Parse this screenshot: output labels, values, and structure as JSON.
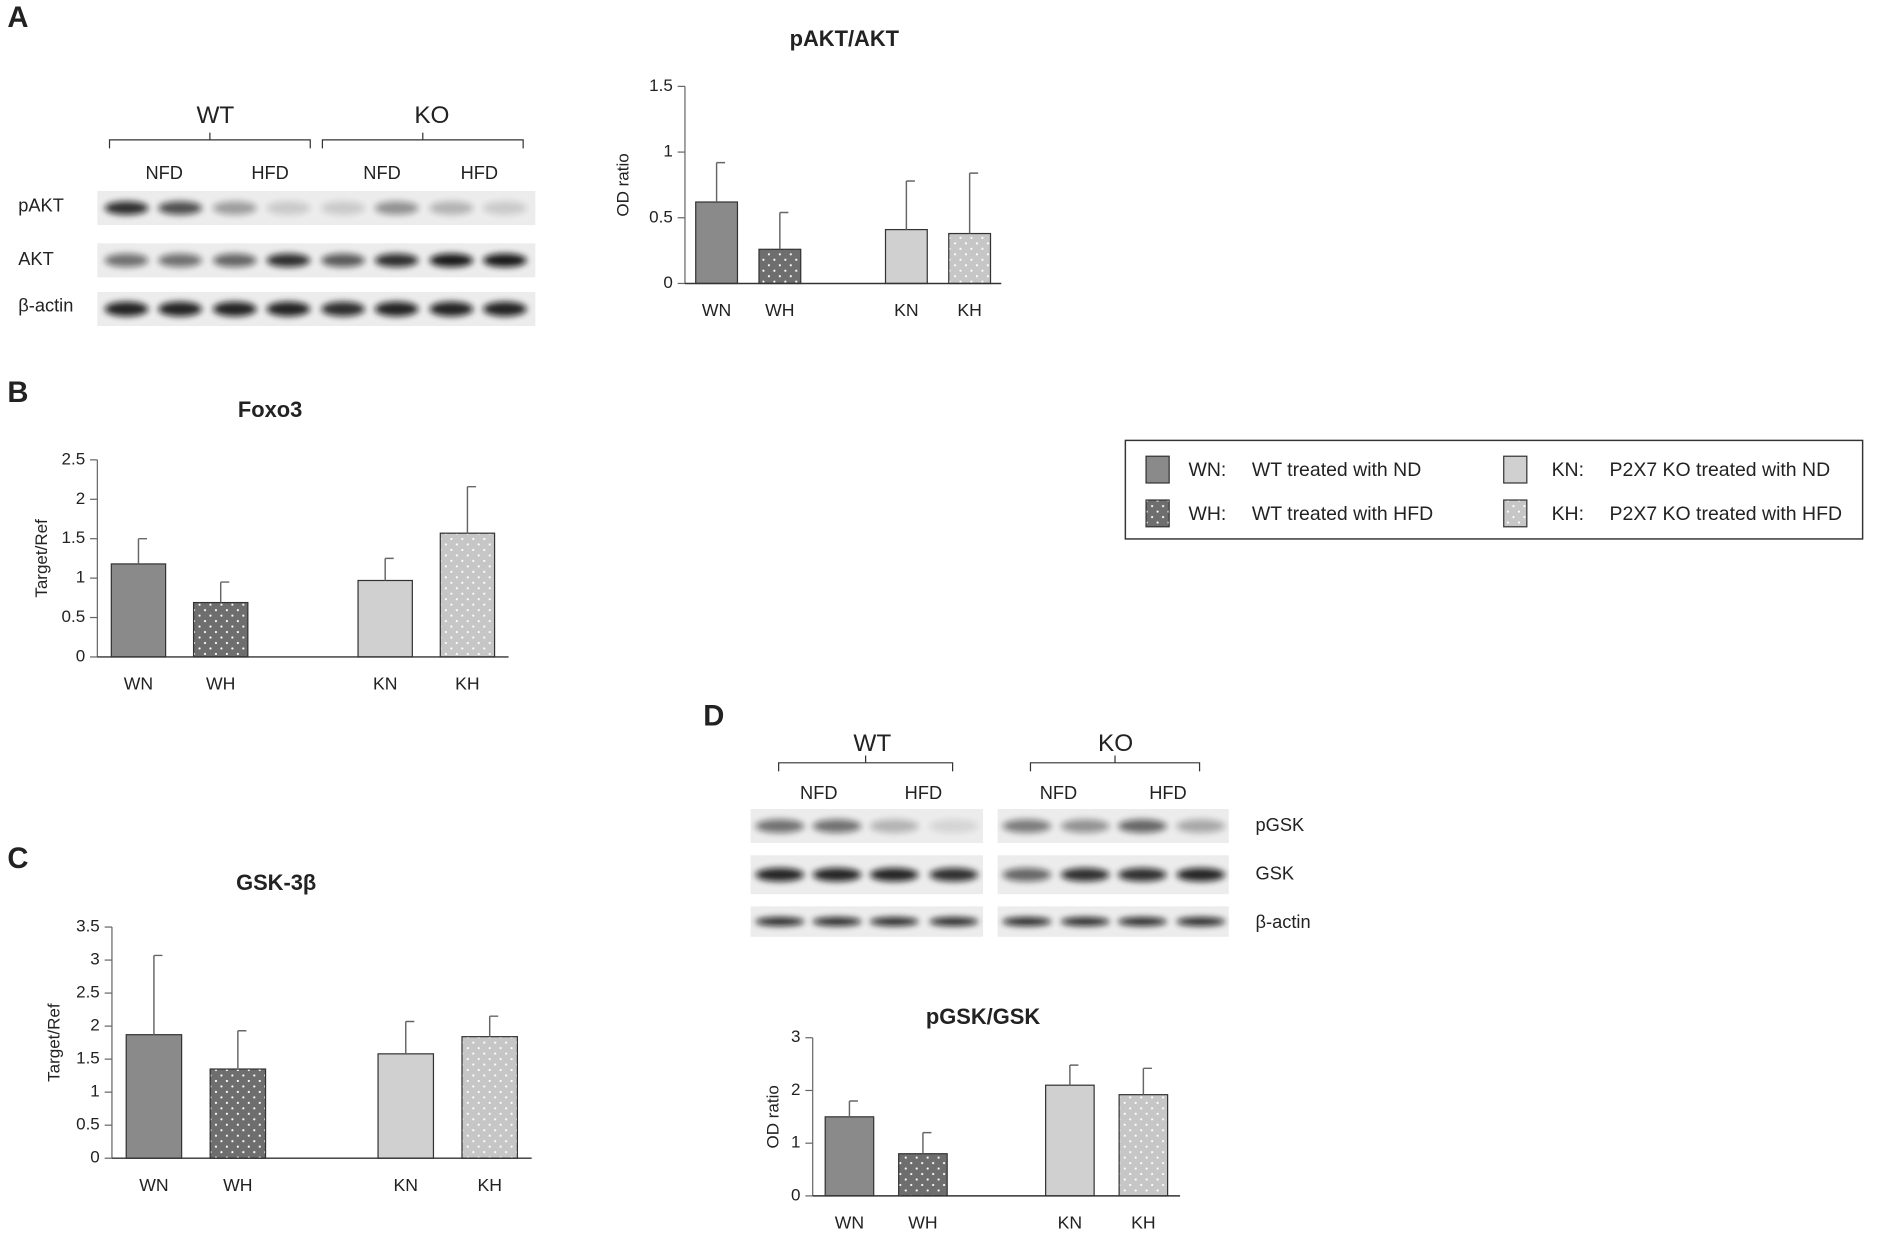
{
  "panels": [
    "A",
    "B",
    "C",
    "D"
  ],
  "chart_data": [
    {
      "type": "bar",
      "title": "pAKT/AKT",
      "y_label": "OD ratio",
      "categories": [
        "WN",
        "WH",
        null,
        "KN",
        "KH"
      ],
      "values": [
        0.62,
        0.26,
        null,
        0.41,
        0.38
      ],
      "errors": [
        0.3,
        0.28,
        null,
        0.37,
        0.46
      ],
      "colors": [
        "#8a8a8a",
        "#6e6e6e",
        null,
        "#d0d0d0",
        "#c6c6c6"
      ],
      "patterns": [
        "solid",
        "dots",
        null,
        "solid",
        "dots"
      ],
      "ylim": [
        0,
        1.5
      ],
      "yticks": [
        0,
        0.5,
        1,
        1.5
      ]
    },
    {
      "type": "bar",
      "title": "Foxo3",
      "y_label": "Target/Ref",
      "categories": [
        "WN",
        "WH",
        null,
        "KN",
        "KH"
      ],
      "values": [
        1.18,
        0.69,
        null,
        0.97,
        1.57
      ],
      "errors": [
        0.32,
        0.26,
        null,
        0.28,
        0.59
      ],
      "colors": [
        "#8a8a8a",
        "#6e6e6e",
        null,
        "#d0d0d0",
        "#c6c6c6"
      ],
      "patterns": [
        "solid",
        "dots",
        null,
        "solid",
        "dots"
      ],
      "ylim": [
        0,
        2.5
      ],
      "yticks": [
        0,
        0.5,
        1,
        1.5,
        2,
        2.5
      ]
    },
    {
      "type": "bar",
      "title": "GSK-3β",
      "y_label": "Target/Ref",
      "categories": [
        "WN",
        "WH",
        null,
        "KN",
        "KH"
      ],
      "values": [
        1.87,
        1.35,
        null,
        1.58,
        1.84
      ],
      "errors": [
        1.2,
        0.58,
        null,
        0.49,
        0.31
      ],
      "colors": [
        "#8a8a8a",
        "#6e6e6e",
        null,
        "#d0d0d0",
        "#c6c6c6"
      ],
      "patterns": [
        "solid",
        "dots",
        null,
        "solid",
        "dots"
      ],
      "ylim": [
        0,
        3.5
      ],
      "yticks": [
        0,
        0.5,
        1,
        1.5,
        2,
        2.5,
        3,
        3.5
      ]
    },
    {
      "type": "bar",
      "title": "pGSK/GSK",
      "y_label": "OD ratio",
      "categories": [
        "WN",
        "WH",
        null,
        "KN",
        "KH"
      ],
      "values": [
        1.5,
        0.8,
        null,
        2.1,
        1.92
      ],
      "errors": [
        0.3,
        0.4,
        null,
        0.38,
        0.5
      ],
      "colors": [
        "#8a8a8a",
        "#6e6e6e",
        null,
        "#d0d0d0",
        "#c6c6c6"
      ],
      "patterns": [
        "solid",
        "dots",
        null,
        "solid",
        "dots"
      ],
      "ylim": [
        0,
        3
      ],
      "yticks": [
        0,
        1,
        2,
        3
      ]
    }
  ],
  "legend": {
    "items": [
      {
        "code": "WN:",
        "text": "WT treated with ND",
        "color": "#8a8a8a",
        "pattern": "solid"
      },
      {
        "code": "WH:",
        "text": "WT treated with HFD",
        "color": "#6e6e6e",
        "pattern": "dots"
      },
      {
        "code": "KN:",
        "text": "P2X7 KO treated with ND",
        "color": "#d0d0d0",
        "pattern": "solid"
      },
      {
        "code": "KH:",
        "text": "P2X7 KO treated with HFD",
        "color": "#c6c6c6",
        "pattern": "dots"
      }
    ]
  },
  "blots": [
    {
      "groups": [
        "WT",
        "KO"
      ],
      "conditions": [
        "NFD",
        "HFD",
        "NFD",
        "HFD"
      ],
      "rows": [
        "pAKT",
        "AKT",
        "β-actin"
      ]
    },
    {
      "groups": [
        "WT",
        "KO"
      ],
      "conditions": [
        "NFD",
        "HFD",
        "NFD",
        "HFD"
      ],
      "rows": [
        "pGSK",
        "GSK",
        "β-actin"
      ]
    }
  ]
}
